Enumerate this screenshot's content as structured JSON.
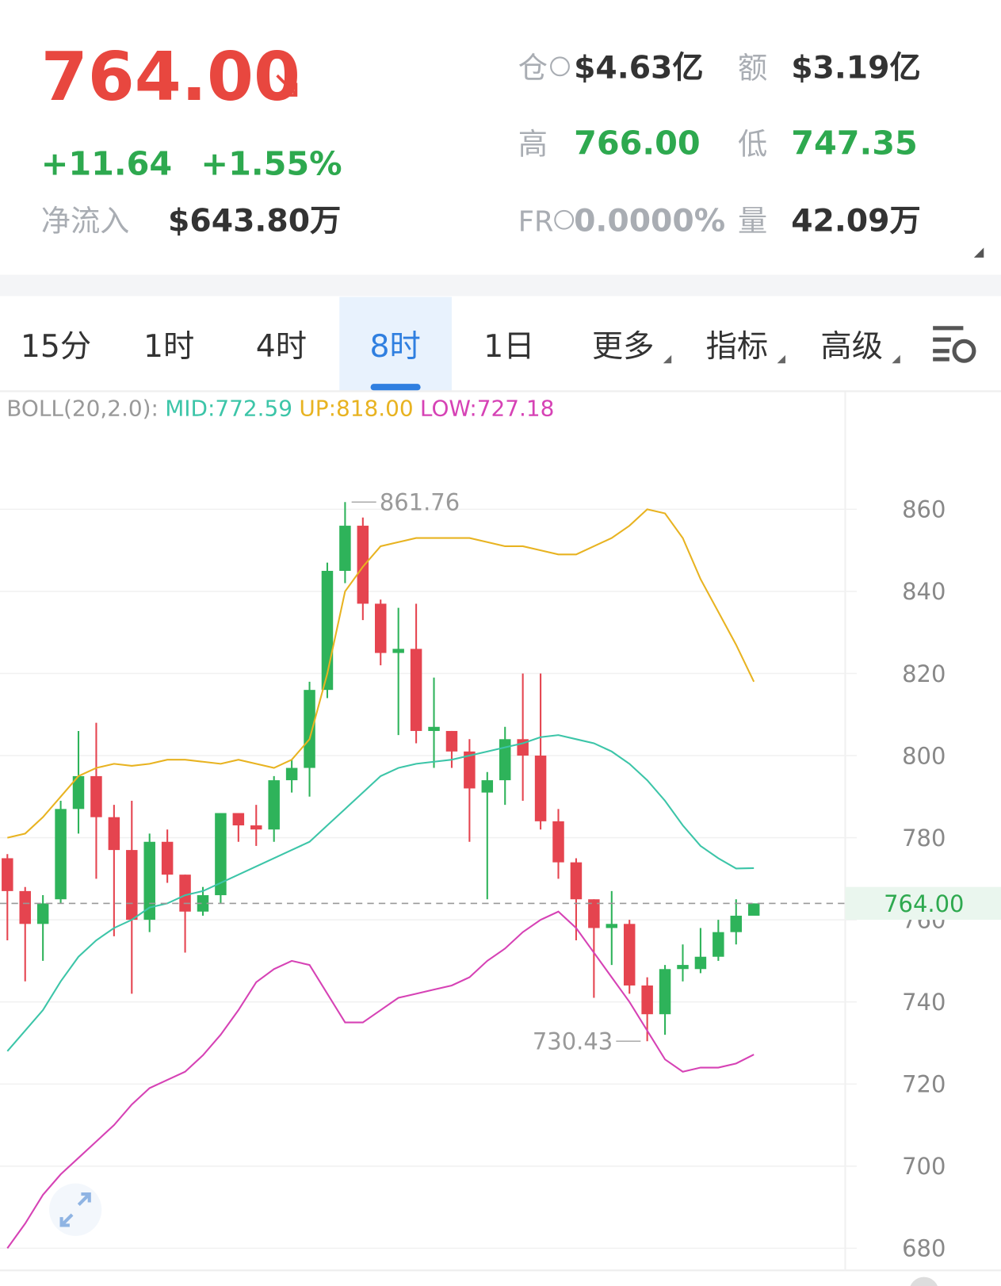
{
  "header": {
    "price": "764.00",
    "change": "+11.64",
    "change_pct": "+1.55%",
    "netflow_label": "净流入",
    "netflow": "$643.80万",
    "stats": [
      {
        "label": "仓",
        "value": "$4.63亿"
      },
      {
        "label": "额",
        "value": "$3.19亿"
      },
      {
        "label": "高",
        "value": "766.00"
      },
      {
        "label": "低",
        "value": "747.35"
      },
      {
        "label": "FR",
        "value": "0.0000%"
      },
      {
        "label": "量",
        "value": "42.09万"
      }
    ]
  },
  "tabs": [
    "15分",
    "1时",
    "4时",
    "8时",
    "1日",
    "更多",
    "指标",
    "高级"
  ],
  "active_tab": "8时",
  "chart_data": {
    "type": "candlestick",
    "indicator": "BOLL(20,2.0):",
    "open": [
      775,
      767,
      759,
      765,
      787,
      795,
      785,
      777,
      760,
      779,
      771,
      762,
      766,
      786,
      783,
      782,
      794,
      797,
      816,
      845,
      856,
      837,
      825,
      826,
      806,
      806,
      801,
      791,
      794,
      804,
      800,
      784,
      774,
      765,
      758,
      759,
      744,
      737,
      748,
      748,
      751,
      757,
      761
    ],
    "high": [
      776,
      768,
      766,
      789,
      806,
      808,
      788,
      789,
      781,
      782,
      771,
      768,
      786,
      786,
      788,
      795,
      799,
      818,
      847,
      861.76,
      858,
      838,
      836,
      837,
      819,
      806,
      804,
      796,
      807,
      820,
      820,
      787,
      775,
      765,
      767,
      760,
      746,
      749,
      754,
      758,
      760,
      765,
      764
    ],
    "low": [
      755,
      745,
      750,
      764,
      781,
      770,
      756,
      742,
      757,
      769,
      752,
      761,
      764,
      779,
      778,
      779,
      791,
      790,
      814,
      842,
      833,
      822,
      805,
      803,
      797,
      797,
      779,
      765,
      788,
      789,
      782,
      770,
      755,
      741,
      749,
      742,
      730.43,
      732,
      745,
      747,
      750,
      754,
      762
    ],
    "close": [
      767,
      759,
      764,
      787,
      795,
      785,
      777,
      760,
      779,
      771,
      762,
      766,
      786,
      783,
      782,
      794,
      797,
      816,
      845,
      856,
      837,
      825,
      826,
      806,
      807,
      801,
      792,
      794,
      804,
      800,
      784,
      774,
      765,
      758,
      759,
      744,
      737,
      748,
      749,
      751,
      757,
      761,
      764
    ],
    "up_color": "#2eb35a",
    "down_color": "#e5444f",
    "series": [
      {
        "name": "MID:772.59",
        "color": "#3cc5a8",
        "values": [
          728,
          733,
          738,
          745,
          751,
          755,
          758,
          760,
          763,
          764,
          766,
          767,
          769,
          771,
          773,
          775,
          777,
          779,
          783,
          787,
          791,
          795,
          797,
          798,
          798.5,
          799,
          800,
          801,
          802,
          803,
          804.5,
          805,
          804,
          803,
          801,
          798,
          794,
          789,
          783,
          778,
          775,
          772.5,
          772.59
        ]
      },
      {
        "name": "UP:818.00",
        "color": "#e8b321",
        "values": [
          780,
          781,
          785,
          790,
          795,
          797,
          798,
          797.5,
          798,
          799,
          799,
          798.5,
          798,
          799,
          798,
          797,
          799,
          804,
          820,
          840,
          846,
          851,
          852,
          853,
          853,
          853,
          853,
          852,
          851,
          851,
          850,
          849,
          849,
          851,
          853,
          856,
          860,
          859,
          853,
          843,
          835,
          827,
          818
        ]
      },
      {
        "name": "LOW:727.18",
        "color": "#d642b5",
        "values": [
          680,
          686,
          693,
          698,
          702,
          706,
          710,
          715,
          719,
          721,
          723,
          727,
          732,
          738,
          744.8,
          748,
          750,
          749,
          742,
          735,
          735,
          738,
          741,
          742,
          743,
          744,
          746,
          750,
          753,
          757,
          760,
          762,
          758,
          752,
          746,
          740,
          733,
          726,
          723,
          724,
          724,
          725,
          727.18
        ]
      }
    ],
    "ylim": [
      674,
      888
    ],
    "yticks": [
      680,
      700,
      720,
      740,
      760,
      780,
      800,
      820,
      840,
      860
    ],
    "grid": true,
    "last_price": {
      "value": 764,
      "label": "764.00"
    },
    "high_marker": 861.76,
    "low_marker": 730.43
  }
}
